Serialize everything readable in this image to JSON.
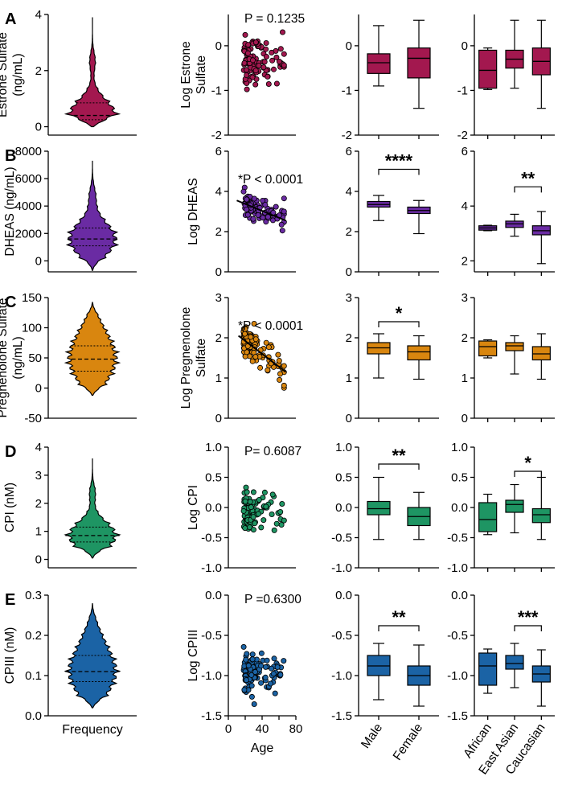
{
  "figure": {
    "rows": [
      {
        "letter": "A",
        "color": "#A3184F",
        "violin_label": "Estrone Sulfate (ng/mL)",
        "scatter_label": "Log Estrone Sulfate",
        "box_range": [
          -2,
          0
        ]
      },
      {
        "letter": "B",
        "color": "#6A2BA3",
        "violin_label": "DHEAS (ng/mL)",
        "scatter_label": "Log DHEAS",
        "box_range": [
          2,
          6
        ]
      },
      {
        "letter": "C",
        "color": "#D9860F",
        "violin_label": "Pregnenolone Sulfate (ng/mL)",
        "scatter_label": "Log Pregnenolone Sulfate",
        "box_range": [
          1,
          3
        ]
      },
      {
        "letter": "D",
        "color": "#1E9563",
        "violin_label": "CPI (nM)",
        "scatter_label": "Log CPI",
        "box_range": [
          -1,
          1
        ]
      },
      {
        "letter": "E",
        "color": "#1B63A5",
        "violin_label": "CPIII (nM)",
        "scatter_label": "Log CPIII",
        "box_range": [
          -1.5,
          0
        ]
      }
    ],
    "shared": {
      "violin_xlabel": "Frequency",
      "scatter_xlabel": "Age",
      "age_ticks": [
        "0",
        "20",
        "40",
        "60",
        "80"
      ],
      "sex_groups": [
        "Male",
        "Female"
      ],
      "ethnicity_groups": [
        "African",
        "East Asian",
        "Caucasian"
      ]
    }
  },
  "chart_data": [
    {
      "type": "violin",
      "panel": "A-violin",
      "ylabel": "Estrone Sulfate (ng/mL)",
      "ylim": [
        -0.3,
        4
      ],
      "yticks": [
        0,
        2,
        4
      ],
      "median": 0.4,
      "quartiles": [
        0.25,
        0.85
      ],
      "range": [
        0.0,
        3.9
      ],
      "color": "#A3184F"
    },
    {
      "type": "scatter",
      "panel": "A-scatter",
      "xlabel": "",
      "ylabel": "Log Estrone Sulfate",
      "xlim": [
        0,
        80
      ],
      "ylim": [
        -2,
        0.7
      ],
      "yticks": [
        -2,
        -1,
        0
      ],
      "annotation": "P = 0.1235",
      "regression": null,
      "center": [
        30,
        -0.3
      ],
      "spread": 0.4,
      "n": 110,
      "color": "#A3184F"
    },
    {
      "type": "box",
      "panel": "A-sex",
      "ylim": [
        -2,
        0.7
      ],
      "yticks": [
        -2,
        -1,
        0
      ],
      "categories": [
        "Male",
        "Female"
      ],
      "boxes": [
        [
          -0.9,
          -0.62,
          -0.38,
          -0.18,
          0.45
        ],
        [
          -1.4,
          -0.72,
          -0.28,
          -0.05,
          0.57
        ]
      ],
      "significance": null,
      "color": "#A3184F"
    },
    {
      "type": "box",
      "panel": "A-ethnicity",
      "ylim": [
        -2,
        0.7
      ],
      "yticks": [
        -2,
        -1,
        0
      ],
      "categories": [
        "African",
        "East Asian",
        "Caucasian"
      ],
      "boxes": [
        [
          -0.98,
          -0.95,
          -0.55,
          -0.1,
          -0.05
        ],
        [
          -0.95,
          -0.5,
          -0.3,
          -0.1,
          0.57
        ],
        [
          -1.4,
          -0.65,
          -0.35,
          -0.05,
          0.57
        ]
      ],
      "significance": null,
      "color": "#A3184F"
    },
    {
      "type": "violin",
      "panel": "B-violin",
      "ylabel": "DHEAS (ng/mL)",
      "ylim": [
        -800,
        8000
      ],
      "yticks": [
        0,
        2000,
        4000,
        6000,
        8000
      ],
      "median": 1600,
      "quartiles": [
        1100,
        2400
      ],
      "range": [
        -700,
        7300
      ],
      "color": "#6A2BA3"
    },
    {
      "type": "scatter",
      "panel": "B-scatter",
      "xlabel": "",
      "ylabel": "Log DHEAS",
      "xlim": [
        0,
        80
      ],
      "ylim": [
        0,
        6
      ],
      "yticks": [
        0,
        2,
        4,
        6
      ],
      "annotation": "*P < 0.0001",
      "regression": [
        [
          10,
          3.55
        ],
        [
          68,
          2.55
        ]
      ],
      "center": [
        33,
        3.15
      ],
      "spread": 0.35,
      "n": 110,
      "color": "#6A2BA3"
    },
    {
      "type": "box",
      "panel": "B-sex",
      "ylim": [
        0,
        6
      ],
      "yticks": [
        0,
        2,
        4,
        6
      ],
      "categories": [
        "Male",
        "Female"
      ],
      "boxes": [
        [
          2.55,
          3.22,
          3.35,
          3.5,
          3.8
        ],
        [
          1.9,
          2.9,
          3.05,
          3.22,
          3.55
        ]
      ],
      "significance": {
        "from": 0,
        "to": 1,
        "label": "****",
        "level": 5.1
      },
      "color": "#6A2BA3"
    },
    {
      "type": "box",
      "panel": "B-ethnicity",
      "ylim": [
        1.6,
        6
      ],
      "yticks": [
        2,
        4,
        6
      ],
      "categories": [
        "African",
        "East Asian",
        "Caucasian"
      ],
      "boxes": [
        [
          3.1,
          3.12,
          3.2,
          3.28,
          3.3
        ],
        [
          2.9,
          3.22,
          3.35,
          3.45,
          3.7
        ],
        [
          1.9,
          2.95,
          3.1,
          3.28,
          3.8
        ]
      ],
      "significance": {
        "from": 1,
        "to": 2,
        "label": "**",
        "level": 4.7
      },
      "color": "#6A2BA3"
    },
    {
      "type": "violin",
      "panel": "C-violin",
      "ylabel": "Pregnenolone Sulfate (ng/mL)",
      "ylim": [
        -50,
        150
      ],
      "yticks": [
        -50,
        0,
        50,
        100,
        150
      ],
      "median": 48,
      "quartiles": [
        28,
        70
      ],
      "range": [
        -12,
        142
      ],
      "color": "#D9860F"
    },
    {
      "type": "scatter",
      "panel": "C-scatter",
      "xlabel": "",
      "ylabel": "Log Pregnenolone Sulfate",
      "xlim": [
        0,
        80
      ],
      "ylim": [
        0,
        3
      ],
      "yticks": [
        0,
        1,
        2,
        3
      ],
      "annotation": "*P < 0.0001",
      "regression": [
        [
          12,
          2.05
        ],
        [
          68,
          1.15
        ]
      ],
      "center": [
        33,
        1.7
      ],
      "spread": 0.25,
      "n": 110,
      "color": "#D9860F"
    },
    {
      "type": "box",
      "panel": "C-sex",
      "ylim": [
        0,
        3
      ],
      "yticks": [
        0,
        1,
        2,
        3
      ],
      "categories": [
        "Male",
        "Female"
      ],
      "boxes": [
        [
          1.0,
          1.6,
          1.75,
          1.88,
          2.1
        ],
        [
          0.97,
          1.45,
          1.65,
          1.8,
          2.05
        ]
      ],
      "significance": {
        "from": 0,
        "to": 1,
        "label": "*",
        "level": 2.4
      },
      "color": "#D9860F"
    },
    {
      "type": "box",
      "panel": "C-ethnicity",
      "ylim": [
        0,
        3
      ],
      "yticks": [
        0,
        1,
        2,
        3
      ],
      "categories": [
        "African",
        "East Asian",
        "Caucasian"
      ],
      "boxes": [
        [
          1.5,
          1.55,
          1.78,
          1.92,
          1.95
        ],
        [
          1.1,
          1.68,
          1.8,
          1.88,
          2.05
        ],
        [
          0.97,
          1.45,
          1.6,
          1.78,
          2.1
        ]
      ],
      "significance": null,
      "color": "#D9860F"
    },
    {
      "type": "violin",
      "panel": "D-violin",
      "ylabel": "CPI (nM)",
      "ylim": [
        -0.3,
        4
      ],
      "yticks": [
        0,
        1,
        2,
        3,
        4
      ],
      "median": 0.85,
      "quartiles": [
        0.62,
        1.15
      ],
      "range": [
        0.05,
        3.6
      ],
      "color": "#1E9563"
    },
    {
      "type": "scatter",
      "panel": "D-scatter",
      "xlabel": "",
      "ylabel": "Log CPI",
      "xlim": [
        0,
        80
      ],
      "ylim": [
        -1,
        1
      ],
      "yticks": [
        -1.0,
        -0.5,
        0.0,
        0.5,
        1.0
      ],
      "annotation": "P= 0.6087",
      "regression": null,
      "center": [
        32,
        -0.05
      ],
      "spread": 0.2,
      "n": 110,
      "color": "#1E9563"
    },
    {
      "type": "box",
      "panel": "D-sex",
      "ylim": [
        -1,
        1
      ],
      "yticks": [
        -1.0,
        -0.5,
        0.0,
        0.5,
        1.0
      ],
      "categories": [
        "Male",
        "Female"
      ],
      "boxes": [
        [
          -0.53,
          -0.12,
          -0.02,
          0.1,
          0.5
        ],
        [
          -0.53,
          -0.3,
          -0.15,
          0.0,
          0.25
        ]
      ],
      "significance": {
        "from": 0,
        "to": 1,
        "label": "**",
        "level": 0.72
      },
      "color": "#1E9563"
    },
    {
      "type": "box",
      "panel": "D-ethnicity",
      "ylim": [
        -1,
        1
      ],
      "yticks": [
        -1.0,
        -0.5,
        0.0,
        0.5,
        1.0
      ],
      "categories": [
        "African",
        "East Asian",
        "Caucasian"
      ],
      "boxes": [
        [
          -0.45,
          -0.4,
          -0.2,
          0.08,
          0.22
        ],
        [
          -0.42,
          -0.08,
          0.05,
          0.12,
          0.38
        ],
        [
          -0.53,
          -0.25,
          -0.12,
          -0.02,
          0.5
        ]
      ],
      "significance": {
        "from": 1,
        "to": 2,
        "label": "*",
        "level": 0.6
      },
      "color": "#1E9563"
    },
    {
      "type": "violin",
      "panel": "E-violin",
      "ylabel": "CPIII (nM)",
      "ylim": [
        0,
        0.3
      ],
      "yticks": [
        0.0,
        0.1,
        0.2,
        0.3
      ],
      "median": 0.11,
      "quartiles": [
        0.085,
        0.15
      ],
      "range": [
        0.02,
        0.28
      ],
      "color": "#1B63A5"
    },
    {
      "type": "scatter",
      "panel": "E-scatter",
      "xlabel": "Age",
      "ylabel": "Log CPIII",
      "xlim": [
        0,
        80
      ],
      "ylim": [
        -1.5,
        0
      ],
      "yticks": [
        -1.5,
        -1.0,
        -0.5,
        0.0
      ],
      "annotation": "P =0.6300",
      "regression": null,
      "center": [
        32,
        -0.95
      ],
      "spread": 0.15,
      "n": 110,
      "color": "#1B63A5"
    },
    {
      "type": "box",
      "panel": "E-sex",
      "ylim": [
        -1.5,
        0
      ],
      "yticks": [
        -1.5,
        -1.0,
        -0.5,
        0.0
      ],
      "categories": [
        "Male",
        "Female"
      ],
      "boxes": [
        [
          -1.3,
          -1.0,
          -0.88,
          -0.75,
          -0.6
        ],
        [
          -1.38,
          -1.12,
          -1.0,
          -0.88,
          -0.62
        ]
      ],
      "significance": {
        "from": 0,
        "to": 1,
        "label": "**",
        "level": -0.38
      },
      "color": "#1B63A5"
    },
    {
      "type": "box",
      "panel": "E-ethnicity",
      "ylim": [
        -1.5,
        0
      ],
      "yticks": [
        -1.5,
        -1.0,
        -0.5,
        0.0
      ],
      "categories": [
        "African",
        "East Asian",
        "Caucasian"
      ],
      "boxes": [
        [
          -1.22,
          -1.12,
          -0.88,
          -0.72,
          -0.67
        ],
        [
          -1.15,
          -0.92,
          -0.85,
          -0.75,
          -0.6
        ],
        [
          -1.38,
          -1.08,
          -0.98,
          -0.88,
          -0.68
        ]
      ],
      "significance": {
        "from": 1,
        "to": 2,
        "label": "***",
        "level": -0.38
      },
      "color": "#1B63A5"
    }
  ]
}
